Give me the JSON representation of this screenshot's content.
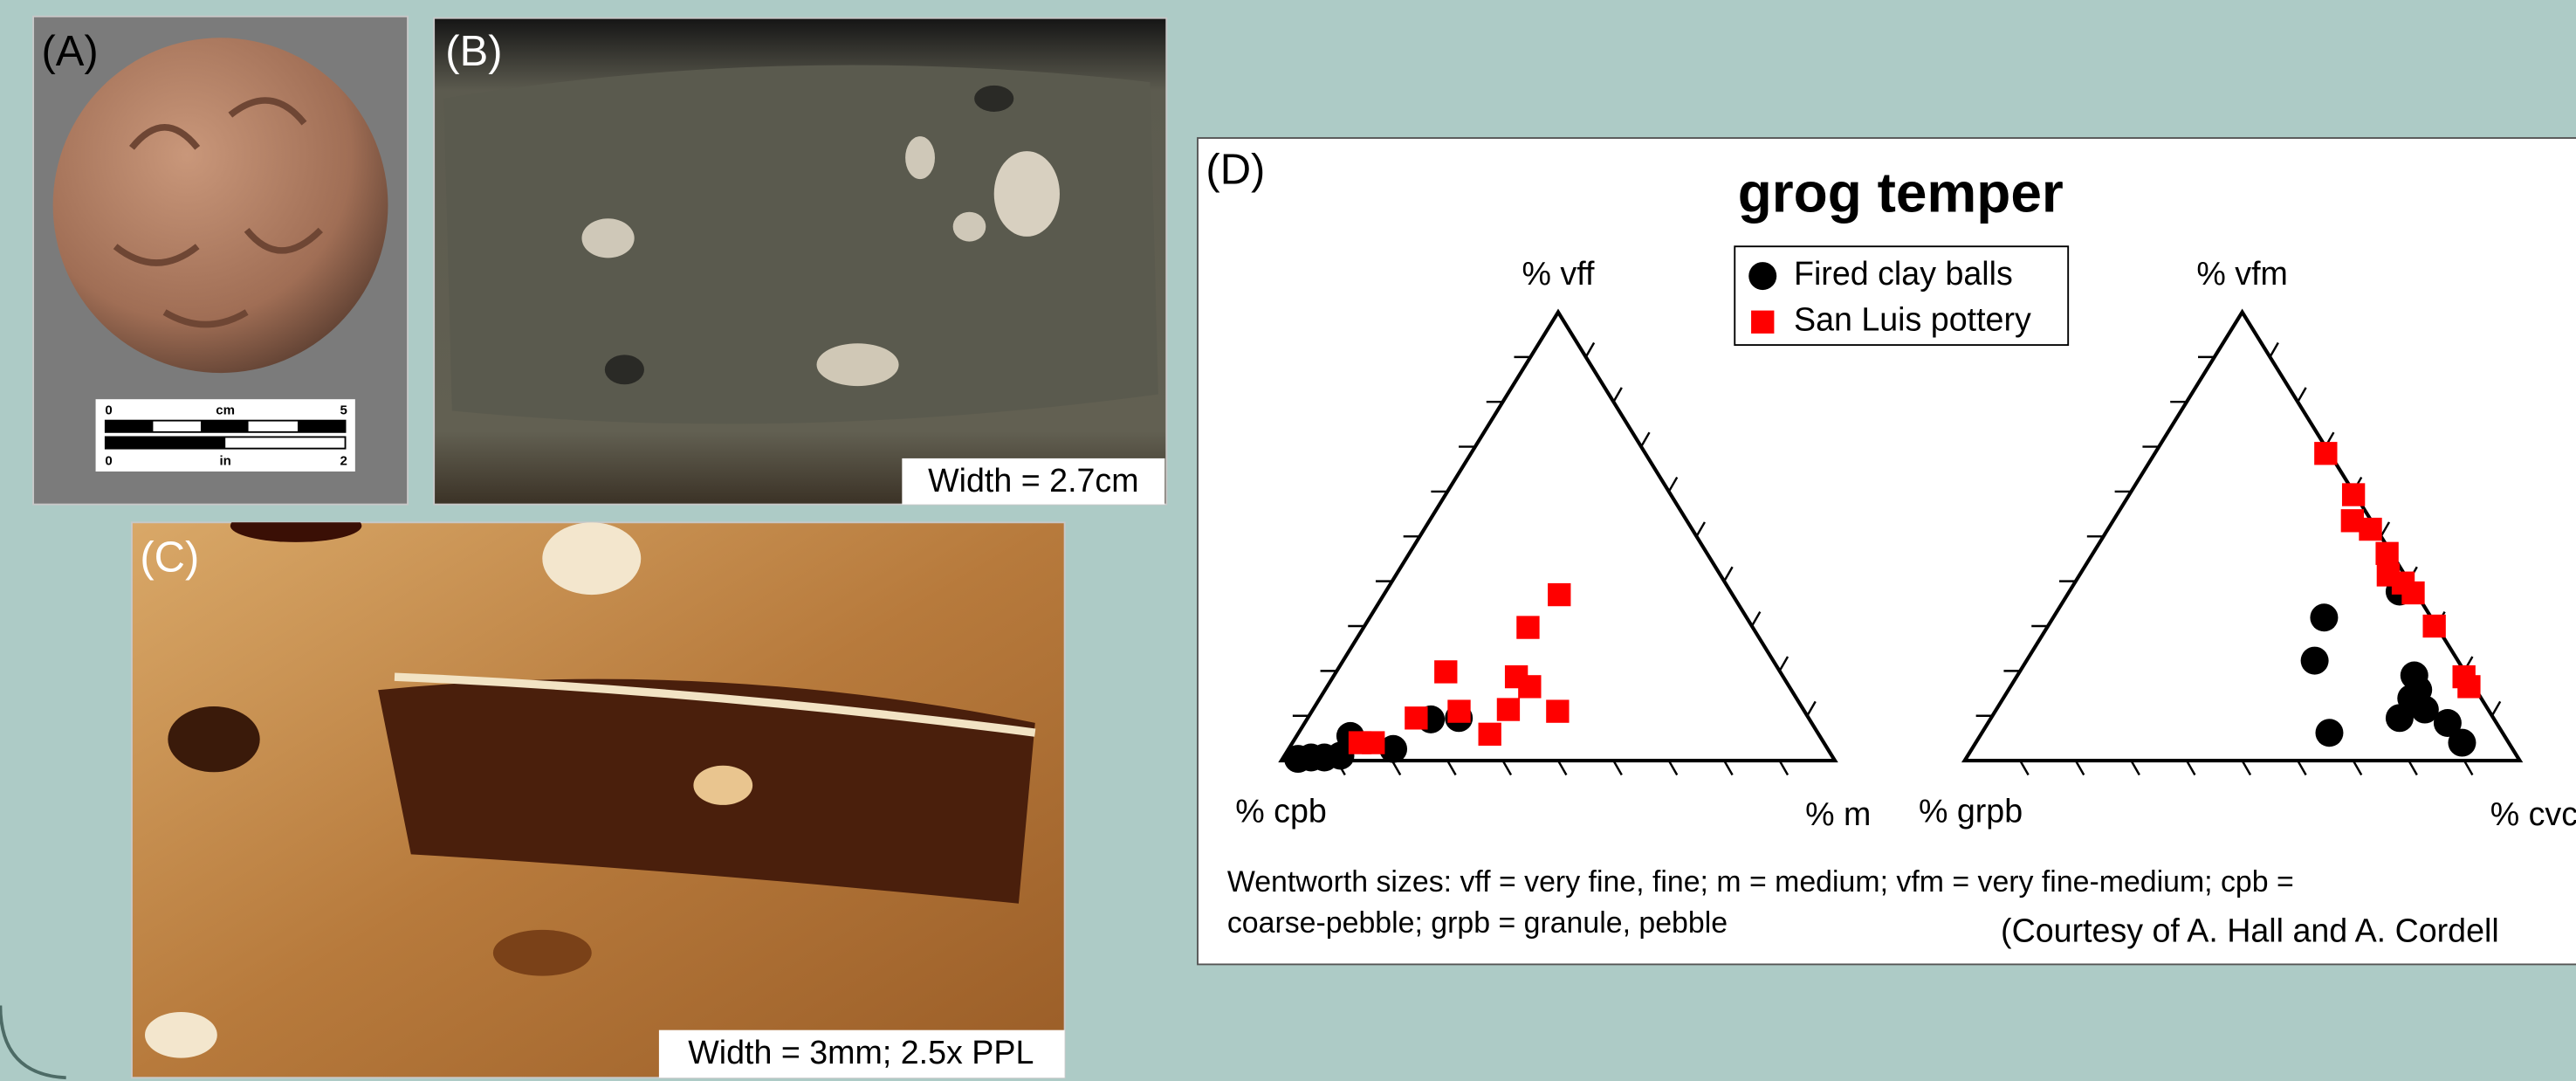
{
  "panels": {
    "a": {
      "label": "(A)",
      "scale_bar": {
        "top_labels": [
          "0",
          "cm",
          "5"
        ],
        "bottom_labels": [
          "0",
          "in",
          "2"
        ]
      }
    },
    "b": {
      "label": "(B)",
      "caption": "Width = 2.7cm"
    },
    "c": {
      "label": "(C)",
      "caption": "Width = 3mm; 2.5x PPL"
    }
  },
  "chart_data": {
    "type": "ternary",
    "panel_label": "(D)",
    "title": "grog temper",
    "series": [
      {
        "name": "Fired clay balls",
        "color": "#000000",
        "marker": "circle"
      },
      {
        "name": "San Luis pottery",
        "color": "#ff0000",
        "marker": "square"
      }
    ],
    "ticks": [
      10,
      20,
      30,
      40,
      50,
      60,
      70,
      80,
      90
    ],
    "plots": [
      {
        "top_label": "% vff",
        "left_label": "% cpb",
        "right_label": "% m",
        "series": [
          {
            "top": [
              0.4,
              0.7,
              0.7,
              1.1,
              5.5,
              2.6,
              9.2,
              9.5
            ],
            "right": [
              2.8,
              5.0,
              7.4,
              10.1,
              9.7,
              18.9,
              22.4,
              27.3
            ]
          },
          {
            "top": [
              4.0,
              4.0,
              9.5,
              19.8,
              11.0,
              5.9,
              11.4,
              18.7,
              16.5,
              29.7,
              11.0,
              37.0
            ],
            "right": [
              12.2,
              14.6,
              19.6,
              19.8,
              26.6,
              34.7,
              35.3,
              33.1,
              36.6,
              29.7,
              44.4,
              31.7
            ]
          }
        ]
      },
      {
        "top_label": "% vfm",
        "left_label": "% grpb",
        "right_label": "% cvc",
        "series": [
          {
            "top": [
              31.9,
              22.3,
              6.2,
              19.0,
              15.8,
              13.9,
              9.5,
              11.4,
              8.4,
              4.0,
              37.7
            ],
            "right": [
              48.8,
              51.9,
              62.6,
              71.5,
              73.8,
              73.5,
              73.6,
              77.2,
              82.8,
              87.6,
              59.5
            ]
          },
          {
            "top": [
              68.5,
              59.3,
              53.5,
              51.6,
              46.2,
              41.4,
              39.6,
              37.4,
              30.0,
              18.7,
              16.5
            ],
            "right": [
              30.8,
              40.4,
              43.1,
              47.3,
              53.0,
              55.6,
              59.2,
              62.1,
              69.6,
              80.6,
              82.6
            ]
          }
        ]
      }
    ],
    "note_lines": [
      "Wentworth sizes: vff =  very fine, fine; m = medium; vfm = very fine-medium; cpb =",
      "coarse-pebble; grpb = granule, pebble"
    ],
    "credit": "(Courtesy of A. Hall and A. Cordell"
  }
}
